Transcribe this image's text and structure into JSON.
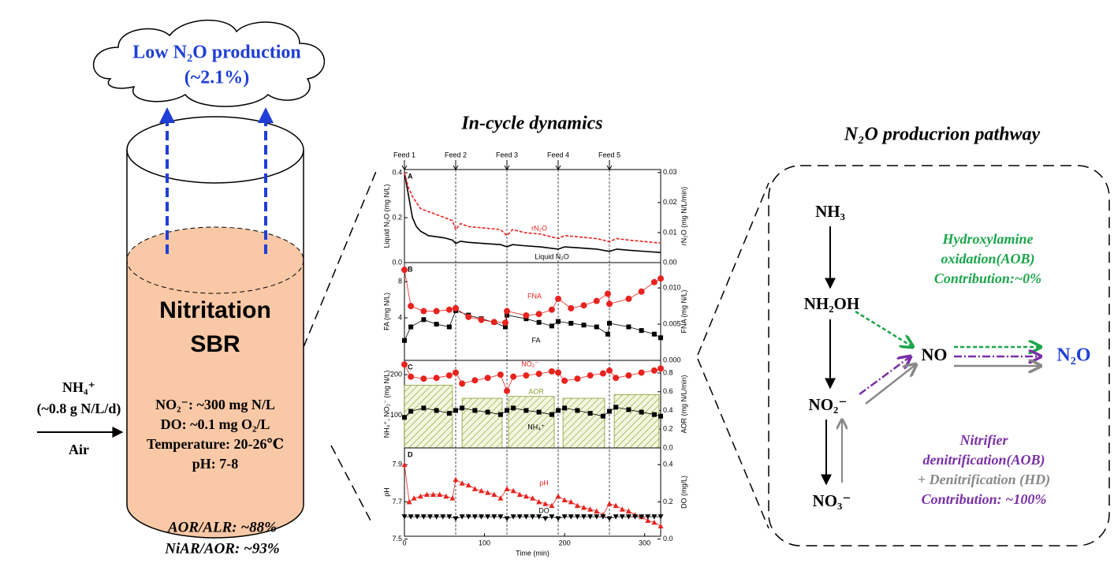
{
  "reactor": {
    "cloud_line1": "Low N₂O production",
    "cloud_line2": "(~2.1%)",
    "name_line1": "Nitritation",
    "name_line2": "SBR",
    "params": [
      "NO₂⁻: ~300 mg N/L",
      "DO: ~0.1 mg O₂/L",
      "Temperature: 20-26℃",
      "pH: 7-8"
    ],
    "influent": [
      "NH₄⁺",
      "(~0.8 g N/L/d)"
    ],
    "air": "Air",
    "ratios": [
      "AOR/ALR: ~88%",
      "NiAR/AOR: ~93%"
    ]
  },
  "dynamics_title": "In-cycle dynamics",
  "pathway": {
    "title": "N₂O producrion pathway",
    "nodes": [
      "NH₃",
      "NH₂OH",
      "NO₂⁻",
      "NO₃⁻",
      "NO",
      "N₂O"
    ],
    "hydroxylamine": [
      "Hydroxylamine",
      "oxidation(AOB)",
      "Contribution:~0%"
    ],
    "nitrifier": [
      "Nitrifier",
      "denitrification(AOB)"
    ],
    "denitrification": "+ Denitrification (HD)",
    "nitrifier_contribution": "Contribution: ~100%"
  },
  "chart_data": [
    {
      "type": "line",
      "label": "A",
      "ylabel": "Liquid N₂O (mg N/L)",
      "y2label": "rN₂O (mg N/L/min)",
      "xlim": [
        0,
        320
      ],
      "ylim": [
        0,
        0.414
      ],
      "yticks": [
        {
          "value": 0,
          "label": "0.0"
        },
        0.2,
        0.4
      ],
      "y2lim": [
        0,
        0.031
      ],
      "y2ticks": [
        {
          "value": 0,
          "label": "0.00"
        },
        0.01,
        0.02,
        0.03
      ],
      "feeds": {
        "x": [
          0,
          64,
          128,
          192,
          256
        ],
        "labels": [
          "Feed 1",
          "Feed 2",
          "Feed 3",
          "Feed 4",
          "Feed 5"
        ]
      },
      "series": [
        {
          "name": "Liquid N₂O",
          "color": "#000000",
          "x": [
            0,
            5,
            10,
            15,
            20,
            30,
            40,
            50,
            60,
            64,
            70,
            80,
            100,
            120,
            128,
            135,
            150,
            170,
            192,
            200,
            220,
            240,
            256,
            265,
            280,
            300,
            320
          ],
          "values": [
            0.4,
            0.3,
            0.2,
            0.16,
            0.14,
            0.12,
            0.115,
            0.11,
            0.1,
            0.085,
            0.095,
            0.09,
            0.085,
            0.08,
            0.07,
            0.08,
            0.075,
            0.07,
            0.06,
            0.07,
            0.065,
            0.06,
            0.05,
            0.06,
            0.055,
            0.05,
            0.045
          ]
        },
        {
          "name": "rN₂O",
          "color": "#e8231f",
          "axis": "y2",
          "dashed": true,
          "x": [
            0,
            5,
            10,
            20,
            30,
            40,
            50,
            60,
            64,
            70,
            80,
            100,
            120,
            128,
            135,
            150,
            170,
            192,
            200,
            220,
            240,
            256,
            265,
            280,
            300,
            320
          ],
          "values": [
            0.03,
            0.025,
            0.022,
            0.018,
            0.017,
            0.016,
            0.015,
            0.014,
            0.011,
            0.013,
            0.012,
            0.0115,
            0.011,
            0.009,
            0.011,
            0.01,
            0.0095,
            0.008,
            0.009,
            0.0085,
            0.008,
            0.007,
            0.008,
            0.0075,
            0.007,
            0.0065
          ]
        }
      ]
    },
    {
      "type": "line",
      "label": "B",
      "ylabel": "FA (mg N/L)",
      "y2label": "FNA (mg N/L)",
      "xlim": [
        0,
        320
      ],
      "ylim": [
        -0.7,
        10.1
      ],
      "yticks": [
        4,
        8
      ],
      "y2lim": [
        0,
        0.0135
      ],
      "y2ticks": [
        {
          "value": 0,
          "label": "0.000"
        },
        0.005,
        {
          "value": 0.01,
          "label": "0.010"
        }
      ],
      "series": [
        {
          "name": "FA",
          "color": "#000000",
          "marker": "square",
          "x": [
            0,
            8,
            24,
            40,
            56,
            64,
            80,
            96,
            112,
            126,
            128,
            152,
            168,
            184,
            192,
            208,
            224,
            240,
            254,
            256,
            280,
            296,
            312,
            320
          ],
          "values": [
            1.5,
            3,
            3.8,
            3.3,
            3.0,
            4.8,
            4.3,
            3.9,
            3.5,
            3.0,
            4.3,
            3.9,
            3.5,
            3.1,
            3.6,
            3.4,
            3.2,
            3.0,
            2.2,
            3.4,
            3.0,
            2.6,
            2.2,
            1.8
          ]
        },
        {
          "name": "FNA",
          "color": "#e8231f",
          "axis": "y2",
          "marker": "circle",
          "x": [
            0,
            8,
            24,
            40,
            56,
            64,
            80,
            96,
            112,
            126,
            128,
            152,
            168,
            184,
            192,
            208,
            224,
            240,
            254,
            256,
            280,
            296,
            312,
            320
          ],
          "values": [
            0.0125,
            0.0075,
            0.0068,
            0.0068,
            0.007,
            0.0072,
            0.006,
            0.0056,
            0.0053,
            0.0052,
            0.0068,
            0.0062,
            0.0064,
            0.007,
            0.0085,
            0.0072,
            0.0076,
            0.0082,
            0.0092,
            0.0078,
            0.0085,
            0.0095,
            0.0108,
            0.0113
          ]
        }
      ]
    },
    {
      "type": "line",
      "label": "C",
      "ylabel": "NH₄⁺, NO₂⁻ (mg N/L)",
      "y2label": "AOR (mg N/L/min)",
      "xlim": [
        0,
        320
      ],
      "ylim": [
        20,
        235
      ],
      "yticks": [
        100,
        200
      ],
      "y2lim": [
        0,
        0.935
      ],
      "y2ticks": [
        {
          "value": 0,
          "label": "0.0"
        },
        0.2,
        0.4,
        0.6,
        0.8
      ],
      "series": [
        {
          "name": "AOR",
          "color": "#8a9a30",
          "axis": "y2",
          "kind": "bar",
          "x_start": [
            0,
            72,
            130,
            198,
            262
          ],
          "x_end": [
            60,
            122,
            187,
            250,
            318
          ],
          "values": [
            0.67,
            0.53,
            0.55,
            0.53,
            0.57
          ]
        },
        {
          "name": "NO₂⁻",
          "color": "#e8231f",
          "marker": "circle",
          "x": [
            0,
            8,
            24,
            40,
            56,
            64,
            72,
            88,
            104,
            120,
            128,
            136,
            152,
            168,
            184,
            192,
            200,
            216,
            232,
            248,
            256,
            264,
            280,
            296,
            312,
            320
          ],
          "values": [
            225,
            195,
            190,
            192,
            198,
            205,
            178,
            186,
            192,
            200,
            160,
            195,
            198,
            202,
            208,
            205,
            185,
            190,
            198,
            203,
            210,
            192,
            198,
            205,
            210,
            215
          ]
        },
        {
          "name": "NH₄⁺",
          "color": "#000000",
          "marker": "square",
          "x": [
            0,
            8,
            24,
            40,
            56,
            64,
            72,
            88,
            104,
            120,
            128,
            136,
            152,
            168,
            184,
            192,
            200,
            216,
            232,
            248,
            256,
            264,
            280,
            296,
            312,
            320
          ],
          "values": [
            95,
            110,
            118,
            112,
            105,
            112,
            118,
            112,
            108,
            102,
            112,
            118,
            112,
            108,
            102,
            112,
            118,
            112,
            105,
            98,
            110,
            120,
            114,
            108,
            102,
            98
          ]
        }
      ]
    },
    {
      "type": "line",
      "label": "D",
      "ylabel": "pH",
      "y2label": "DO (mg/L)",
      "xlabel": "Time (min)",
      "xlim": [
        0,
        320
      ],
      "xticks": [
        0,
        100,
        200,
        300
      ],
      "ylim": [
        7.515,
        7.99
      ],
      "yticks": [
        7.5,
        7.7,
        7.9
      ],
      "y2lim": [
        0.015,
        0.49
      ],
      "y2ticks": [
        {
          "value": 0,
          "label": "0.0"
        },
        0.2,
        0.4
      ],
      "series": [
        {
          "name": "pH",
          "color": "#e8231f",
          "marker": "triangle",
          "x": [
            0,
            6,
            12,
            20,
            28,
            36,
            44,
            52,
            60,
            64,
            72,
            80,
            88,
            96,
            104,
            112,
            120,
            128,
            136,
            144,
            152,
            160,
            168,
            176,
            184,
            192,
            200,
            208,
            216,
            224,
            232,
            240,
            248,
            256,
            264,
            272,
            280,
            288,
            296,
            304,
            312,
            320
          ],
          "values": [
            7.9,
            7.7,
            7.72,
            7.73,
            7.74,
            7.74,
            7.74,
            7.73,
            7.72,
            7.82,
            7.8,
            7.79,
            7.77,
            7.76,
            7.75,
            7.74,
            7.72,
            7.77,
            7.76,
            7.74,
            7.73,
            7.72,
            7.7,
            7.69,
            7.68,
            7.73,
            7.71,
            7.7,
            7.68,
            7.67,
            7.66,
            7.65,
            7.63,
            7.69,
            7.68,
            7.66,
            7.65,
            7.63,
            7.62,
            7.6,
            7.59,
            7.57
          ]
        },
        {
          "name": "DO",
          "color": "#000000",
          "axis": "y2",
          "marker": "triangle-down",
          "x": [
            0,
            8,
            16,
            24,
            32,
            40,
            48,
            56,
            64,
            72,
            80,
            88,
            96,
            104,
            112,
            120,
            128,
            136,
            144,
            152,
            160,
            168,
            176,
            184,
            192,
            200,
            208,
            216,
            224,
            232,
            240,
            248,
            256,
            264,
            272,
            280,
            288,
            296,
            304,
            312,
            320
          ],
          "values": [
            0.12,
            0.12,
            0.12,
            0.12,
            0.12,
            0.12,
            0.12,
            0.12,
            0.11,
            0.12,
            0.12,
            0.12,
            0.12,
            0.12,
            0.12,
            0.12,
            0.11,
            0.12,
            0.12,
            0.12,
            0.12,
            0.12,
            0.11,
            0.12,
            0.11,
            0.12,
            0.12,
            0.12,
            0.12,
            0.12,
            0.12,
            0.12,
            0.11,
            0.12,
            0.12,
            0.12,
            0.12,
            0.12,
            0.12,
            0.12,
            0.12
          ]
        }
      ]
    }
  ]
}
